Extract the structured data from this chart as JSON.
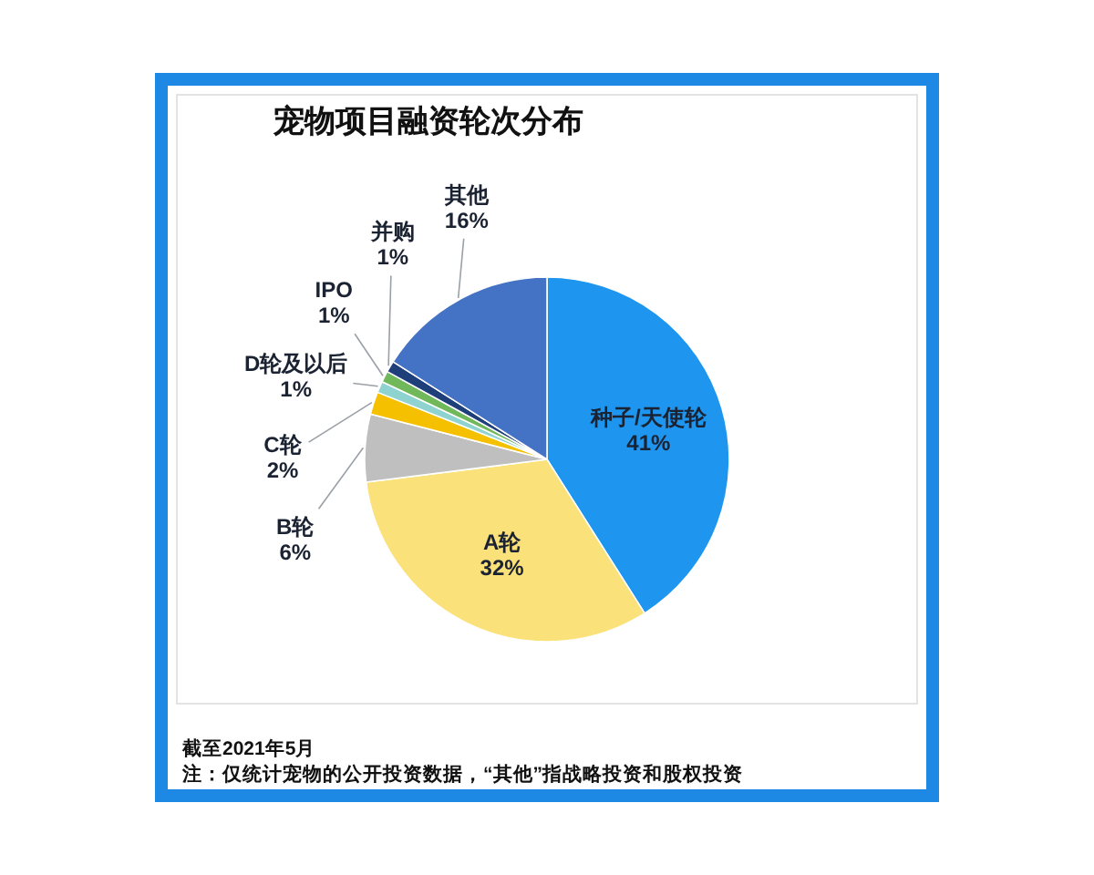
{
  "chart_data": {
    "type": "pie",
    "title": "宠物项目融资轮次分布",
    "categories": [
      "种子/天使轮",
      "A轮",
      "B轮",
      "C轮",
      "D轮及以后",
      "IPO",
      "并购",
      "其他"
    ],
    "values": [
      41,
      32,
      6,
      2,
      1,
      1,
      1,
      16
    ],
    "colors": [
      "#1e96f0",
      "#fbe17a",
      "#bfbfbf",
      "#f5c000",
      "#8fd3d0",
      "#70b85a",
      "#1f3f7a",
      "#4472c4"
    ],
    "value_labels": [
      "41%",
      "32%",
      "6%",
      "2%",
      "1%",
      "1%",
      "1%",
      "16%"
    ],
    "annotations": [
      "截至2021年5月",
      "注：仅统计宠物的公开投资数据，“其他”指战略投资和股权投资"
    ]
  }
}
